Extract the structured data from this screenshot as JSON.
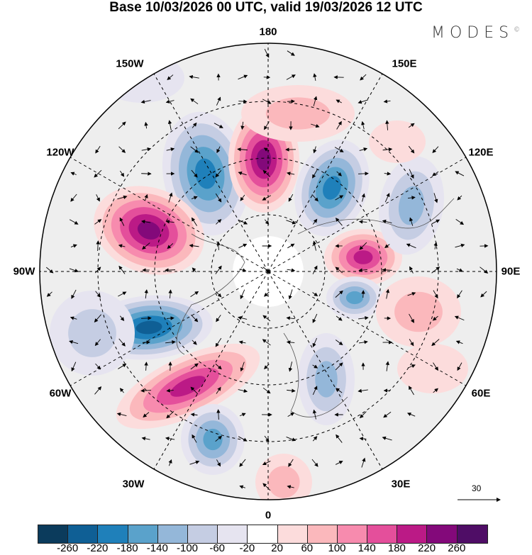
{
  "title": "Base 10/03/2026 00 UTC, valid 19/03/2026 12 UTC",
  "logo": "MODES",
  "logo_mark": "©",
  "longitude_labels": {
    "top": "180",
    "bottom": "0",
    "w150": "150W",
    "e150": "150E",
    "w120": "120W",
    "e120": "120E",
    "w90": "90W",
    "e90": "90E",
    "w60": "60W",
    "e60": "60E",
    "w30": "30W",
    "e30": "30E"
  },
  "reference_vector_label": "30",
  "colorbar": {
    "colors": [
      "#0b3b5c",
      "#0f5f95",
      "#1f80ba",
      "#5aa2cb",
      "#94b7d9",
      "#c5cde3",
      "#e6e4f0",
      "#ffffff",
      "#fcdcdc",
      "#fbb8bc",
      "#f78bae",
      "#e44f9b",
      "#bb1a86",
      "#83097a",
      "#4f0d66"
    ],
    "ticks": [
      "-260",
      "-220",
      "-180",
      "-140",
      "-100",
      "-60",
      "-20",
      "20",
      "60",
      "100",
      "140",
      "180",
      "220",
      "260"
    ]
  }
}
